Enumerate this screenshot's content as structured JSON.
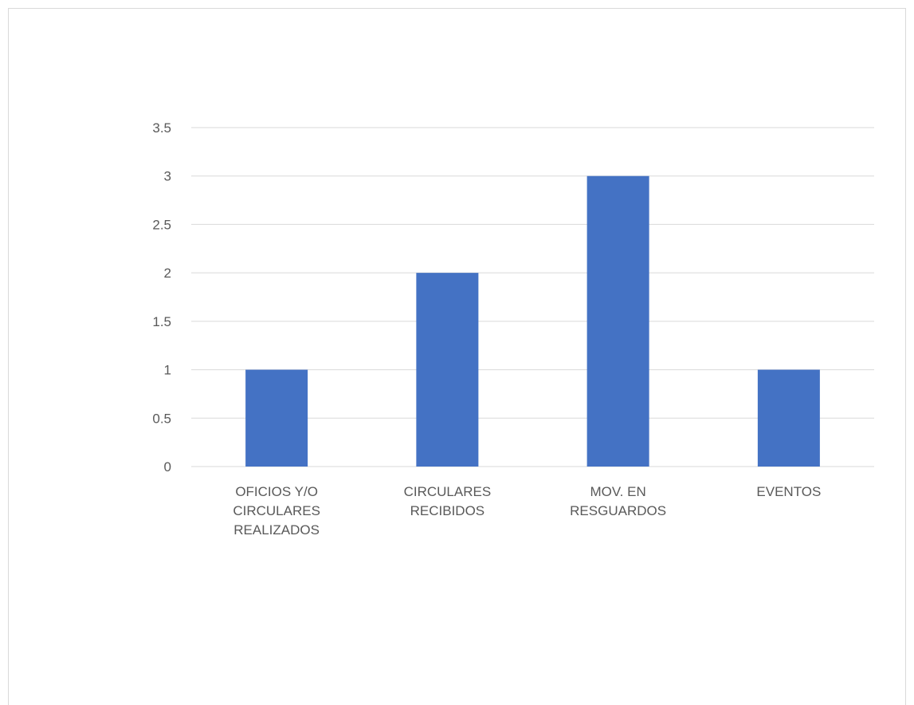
{
  "chart_data": {
    "type": "bar",
    "categories": [
      [
        "OFICIOS Y/O",
        "CIRCULARES",
        "REALIZADOS"
      ],
      [
        "CIRCULARES",
        "RECIBIDOS"
      ],
      [
        "MOV. EN",
        "RESGUARDOS"
      ],
      [
        "EVENTOS"
      ]
    ],
    "values": [
      1,
      2,
      3,
      1
    ],
    "ylim": [
      0,
      3.5
    ],
    "yticks": [
      "0",
      "0.5",
      "1",
      "1.5",
      "2",
      "2.5",
      "3",
      "3.5"
    ],
    "grid": true,
    "legend": "none",
    "colors": {
      "bar": "#4472C4",
      "grid": "#d9d9d9",
      "text": "#595959"
    }
  }
}
